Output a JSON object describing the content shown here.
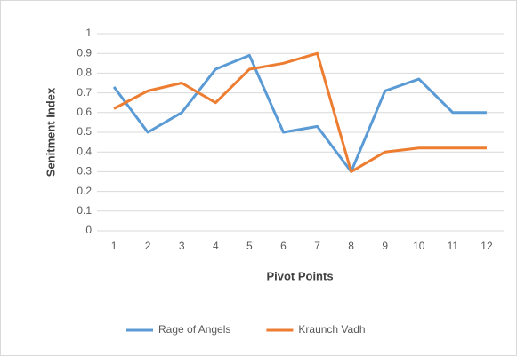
{
  "chart_data": {
    "type": "line",
    "xlabel": "Pivot Points",
    "ylabel": "Senitment Index",
    "categories": [
      "1",
      "2",
      "3",
      "4",
      "5",
      "6",
      "7",
      "8",
      "9",
      "10",
      "11",
      "12"
    ],
    "series": [
      {
        "name": "Rage of Angels",
        "color": "#5b9bd5",
        "values": [
          0.73,
          0.5,
          0.6,
          0.82,
          0.89,
          0.5,
          0.53,
          0.3,
          0.71,
          0.77,
          0.6,
          0.6
        ]
      },
      {
        "name": "Kraunch Vadh",
        "color": "#ed7d31",
        "values": [
          0.62,
          0.71,
          0.75,
          0.65,
          0.82,
          0.85,
          0.9,
          0.3,
          0.4,
          0.42,
          0.42,
          0.42
        ]
      }
    ],
    "ylim": [
      0,
      1
    ],
    "yticks": [
      0,
      0.1,
      0.2,
      0.3,
      0.4,
      0.5,
      0.6,
      0.7,
      0.8,
      0.9,
      1
    ],
    "grid": true,
    "legend": "bottom"
  }
}
